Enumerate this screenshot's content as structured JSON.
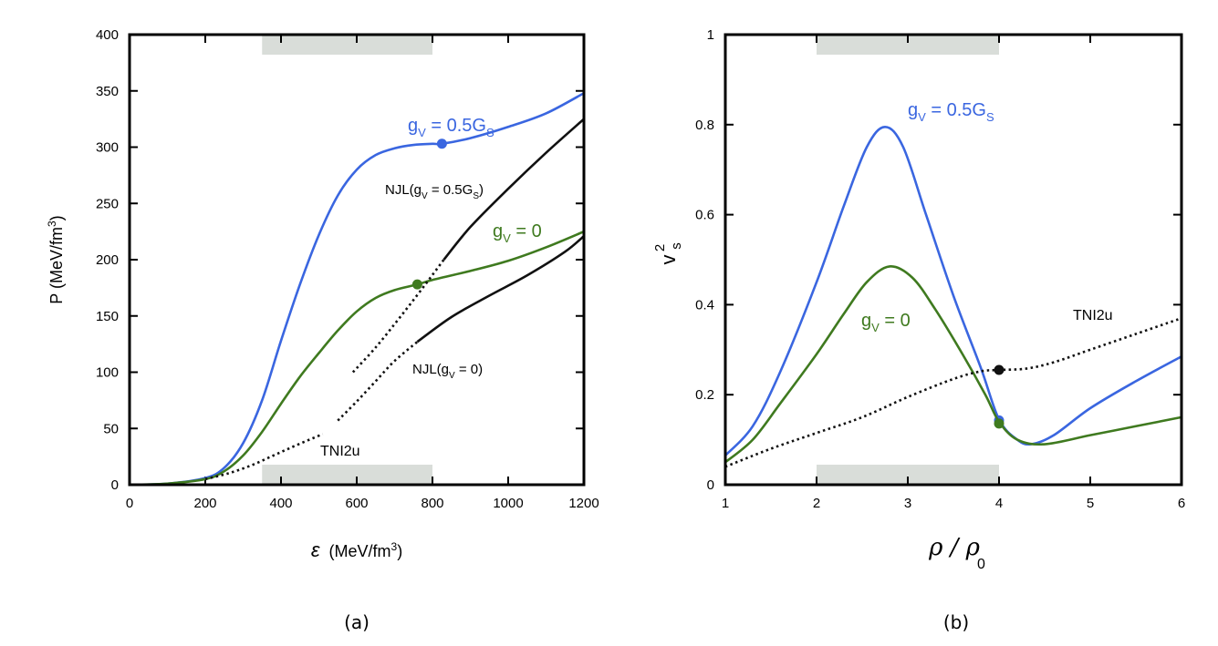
{
  "colors": {
    "blue": "#3a66e0",
    "green": "#3f7a1f",
    "black": "#111111",
    "band": "#d9ddd9"
  },
  "chart_data": [
    {
      "type": "line",
      "panel": "(a)",
      "xlabel": "ε (MeV/fm3)",
      "xlabel_parts": {
        "sym": "ε",
        "unit": "(MeV/fm",
        "sup": "3",
        "close": ")"
      },
      "ylabel": "P (MeV/fm3)",
      "ylabel_parts": {
        "base": "P (MeV/fm",
        "sup": "3",
        "close": ")"
      },
      "xlim": [
        0,
        1200
      ],
      "ylim": [
        0,
        400
      ],
      "xticks": [
        "0",
        "200",
        "400",
        "600",
        "800",
        "1000",
        "1200"
      ],
      "yticks": [
        "0",
        "50",
        "100",
        "150",
        "200",
        "250",
        "300",
        "350",
        "400"
      ],
      "shaded_band": {
        "x": [
          350,
          800
        ]
      },
      "series": [
        {
          "name": "gV = 0.5GS",
          "color": "blue",
          "style": "solid",
          "x": [
            0,
            100,
            200,
            250,
            300,
            350,
            400,
            450,
            500,
            550,
            600,
            650,
            700,
            750,
            800,
            825,
            900,
            1000,
            1100,
            1200
          ],
          "y": [
            0,
            1,
            6,
            15,
            37,
            75,
            128,
            178,
            222,
            257,
            280,
            293,
            299,
            302,
            303,
            303,
            308,
            318,
            330,
            348
          ],
          "marker": {
            "x": 825,
            "y": 303
          }
        },
        {
          "name": "gV = 0",
          "color": "green",
          "style": "solid",
          "x": [
            0,
            100,
            200,
            250,
            300,
            350,
            400,
            450,
            500,
            550,
            600,
            650,
            700,
            760,
            800,
            900,
            1000,
            1100,
            1200
          ],
          "y": [
            0,
            1,
            5,
            12,
            26,
            47,
            72,
            96,
            117,
            137,
            154,
            166,
            173,
            178,
            182,
            190,
            199,
            211,
            225
          ],
          "marker": {
            "x": 760,
            "y": 178
          }
        },
        {
          "name": "TNI2u",
          "color": "black",
          "style": "dotted",
          "x": [
            200,
            260,
            320,
            380,
            440,
            510
          ],
          "y": [
            5,
            10,
            17,
            26,
            35,
            45
          ]
        },
        {
          "name": "NJL(gV = 0.5GS)",
          "color": "black",
          "style": "dotted",
          "x": [
            590,
            650,
            710,
            770,
            830
          ],
          "y": [
            100,
            122,
            147,
            173,
            200
          ]
        },
        {
          "name": "NJL(gV = 0.5GS)",
          "color": "black",
          "style": "solid",
          "x": [
            830,
            900,
            1000,
            1100,
            1200
          ],
          "y": [
            200,
            229,
            263,
            295,
            325
          ]
        },
        {
          "name": "NJL(gV = 0)",
          "color": "black",
          "style": "dotted",
          "x": [
            550,
            600,
            650,
            700,
            760
          ],
          "y": [
            57,
            74,
            92,
            110,
            127
          ]
        },
        {
          "name": "NJL(gV = 0)",
          "color": "black",
          "style": "solid",
          "x": [
            760,
            850,
            950,
            1050,
            1150,
            1200
          ],
          "y": [
            127,
            149,
            168,
            186,
            207,
            221
          ]
        }
      ],
      "labels": {
        "blue": {
          "gv": "g",
          "gv_sub": "V",
          "eq": " = 0.5G",
          "eq_sub": "S"
        },
        "green": {
          "gv": "g",
          "gv_sub": "V",
          "eq": " = 0"
        },
        "njl_half": {
          "a": "NJL(g",
          "a_sub": "V",
          "b": " = 0.5G",
          "b_sub": "S",
          "c": ")"
        },
        "njl_zero": {
          "a": "NJL(g",
          "a_sub": "V",
          "b": " = 0)"
        },
        "tni": "TNI2u"
      }
    },
    {
      "type": "line",
      "panel": "(b)",
      "xlabel": "ρ / ρ0",
      "xlabel_parts": {
        "a": "ρ / ρ",
        "sub": "0"
      },
      "ylabel": "vs2",
      "ylabel_parts": {
        "base": "v",
        "sub": "s",
        "sup": "2"
      },
      "xlim": [
        1,
        6
      ],
      "ylim": [
        0,
        1
      ],
      "xticks": [
        "1",
        "2",
        "3",
        "4",
        "5",
        "6"
      ],
      "yticks": [
        "0",
        "0.2",
        "0.4",
        "0.6",
        "0.8",
        "1"
      ],
      "shaded_band": {
        "x": [
          2,
          4
        ]
      },
      "series": [
        {
          "name": "gV = 0.5GS",
          "color": "blue",
          "style": "solid",
          "x": [
            1,
            1.3,
            1.6,
            2,
            2.3,
            2.55,
            2.75,
            2.95,
            3.2,
            3.5,
            3.8,
            4,
            4.2,
            4.35,
            4.6,
            5,
            5.5,
            6
          ],
          "y": [
            0.065,
            0.13,
            0.25,
            0.45,
            0.62,
            0.75,
            0.795,
            0.75,
            0.6,
            0.42,
            0.26,
            0.145,
            0.1,
            0.09,
            0.11,
            0.17,
            0.23,
            0.285
          ],
          "marker": {
            "x": 4,
            "y": 0.143
          }
        },
        {
          "name": "gV = 0",
          "color": "green",
          "style": "solid",
          "x": [
            1,
            1.3,
            1.6,
            2,
            2.3,
            2.55,
            2.8,
            3.05,
            3.3,
            3.6,
            3.85,
            4,
            4.2,
            4.5,
            5,
            5.5,
            6
          ],
          "y": [
            0.05,
            0.1,
            0.18,
            0.29,
            0.38,
            0.45,
            0.485,
            0.46,
            0.39,
            0.29,
            0.2,
            0.14,
            0.1,
            0.09,
            0.11,
            0.13,
            0.15
          ],
          "marker": {
            "x": 4,
            "y": 0.136
          }
        },
        {
          "name": "TNI2u",
          "color": "black",
          "style": "dotted",
          "x": [
            1,
            1.5,
            2,
            2.5,
            3,
            3.5,
            3.8,
            4,
            4.3,
            4.6,
            5,
            5.5,
            6
          ],
          "y": [
            0.04,
            0.08,
            0.115,
            0.15,
            0.195,
            0.235,
            0.252,
            0.255,
            0.258,
            0.272,
            0.3,
            0.335,
            0.37
          ],
          "marker": {
            "x": 4,
            "y": 0.255
          }
        }
      ],
      "labels": {
        "blue": {
          "gv": "g",
          "gv_sub": "V",
          "eq": " = 0.5G",
          "eq_sub": "S"
        },
        "green": {
          "gv": "g",
          "gv_sub": "V",
          "eq": " = 0"
        },
        "tni": "TNI2u"
      }
    }
  ]
}
